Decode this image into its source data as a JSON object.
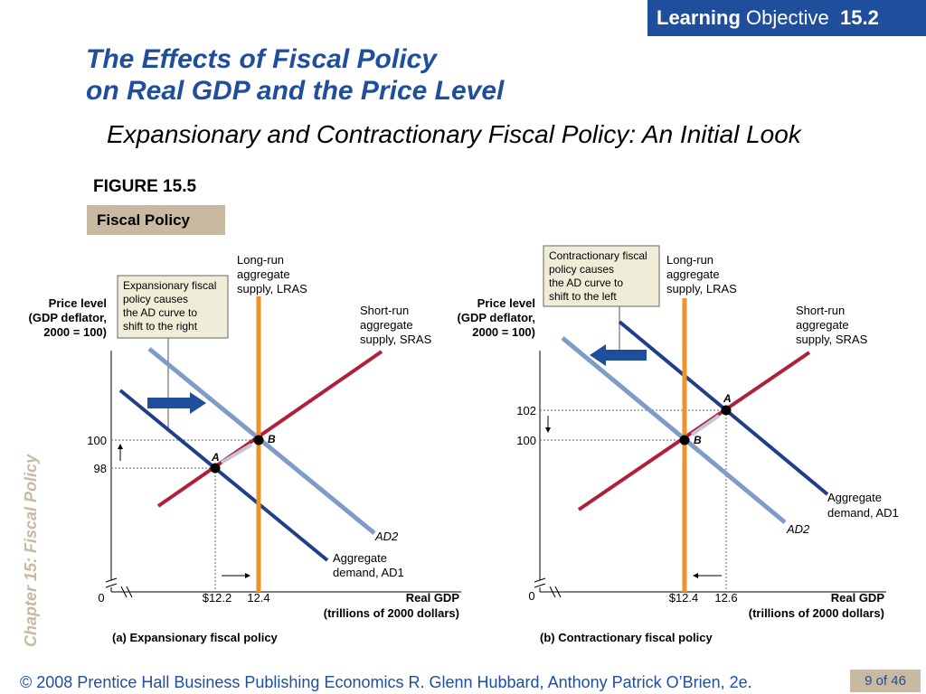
{
  "header": {
    "badge_word1": "Learning",
    "badge_word2": "Objective",
    "badge_number": "15.2"
  },
  "title": {
    "line1": "The Effects of Fiscal Policy",
    "line2": "on Real GDP and the Price Level"
  },
  "subtitle": "Expansionary and Contractionary Fiscal Policy:  An Initial Look",
  "figure": {
    "label": "FIGURE 15.5",
    "tab": "Fiscal Policy"
  },
  "side_label": "Chapter 15:  Fiscal Policy",
  "footer": {
    "text": "© 2008 Prentice Hall Business Publishing   Economics  R. Glenn Hubbard, Anthony Patrick O’Brien, 2e.",
    "page": "9 of 46"
  },
  "colors": {
    "accent": "#1f4e9c",
    "tan": "#c8b9a0",
    "lras": "#f0922a",
    "sras": "#b0203b",
    "ad1": "#1f3f88",
    "ad2": "#7f9bc8"
  },
  "panel_a": {
    "ylabel": [
      "Price level",
      "(GDP deflator,",
      "2000 = 100)"
    ],
    "xlabel": [
      "Real GDP",
      "(trillions of 2000 dollars)"
    ],
    "caption": "(a) Expansionary fiscal policy",
    "origin": "0",
    "yticks": [
      "100",
      "98"
    ],
    "xticks": [
      "$12.2",
      "12.4"
    ],
    "callout": [
      "Expansionary fiscal",
      "policy causes",
      "the AD curve to",
      "shift to the right"
    ],
    "lras": [
      "Long-run",
      "aggregate",
      "supply, LRAS"
    ],
    "sras": [
      "Short-run",
      "aggregate",
      "supply, SRAS"
    ],
    "ad1": [
      "Aggregate",
      "demand, AD1"
    ],
    "ad2": "AD2",
    "pointA": "A",
    "pointB": "B"
  },
  "panel_b": {
    "ylabel": [
      "Price level",
      "(GDP deflator,",
      "2000 = 100)"
    ],
    "xlabel": [
      "Real GDP",
      "(trillions of 2000 dollars)"
    ],
    "caption": "(b) Contractionary fiscal policy",
    "origin": "0",
    "yticks": [
      "102",
      "100"
    ],
    "xticks": [
      "$12.4",
      "12.6"
    ],
    "callout": [
      "Contractionary fiscal",
      "policy causes",
      "the AD curve to",
      "shift to the left"
    ],
    "lras": [
      "Long-run",
      "aggregate",
      "supply, LRAS"
    ],
    "sras": [
      "Short-run",
      "aggregate",
      "supply, SRAS"
    ],
    "ad1": [
      "Aggregate",
      "demand, AD1"
    ],
    "ad2": "AD2",
    "pointA": "A",
    "pointB": "B"
  }
}
